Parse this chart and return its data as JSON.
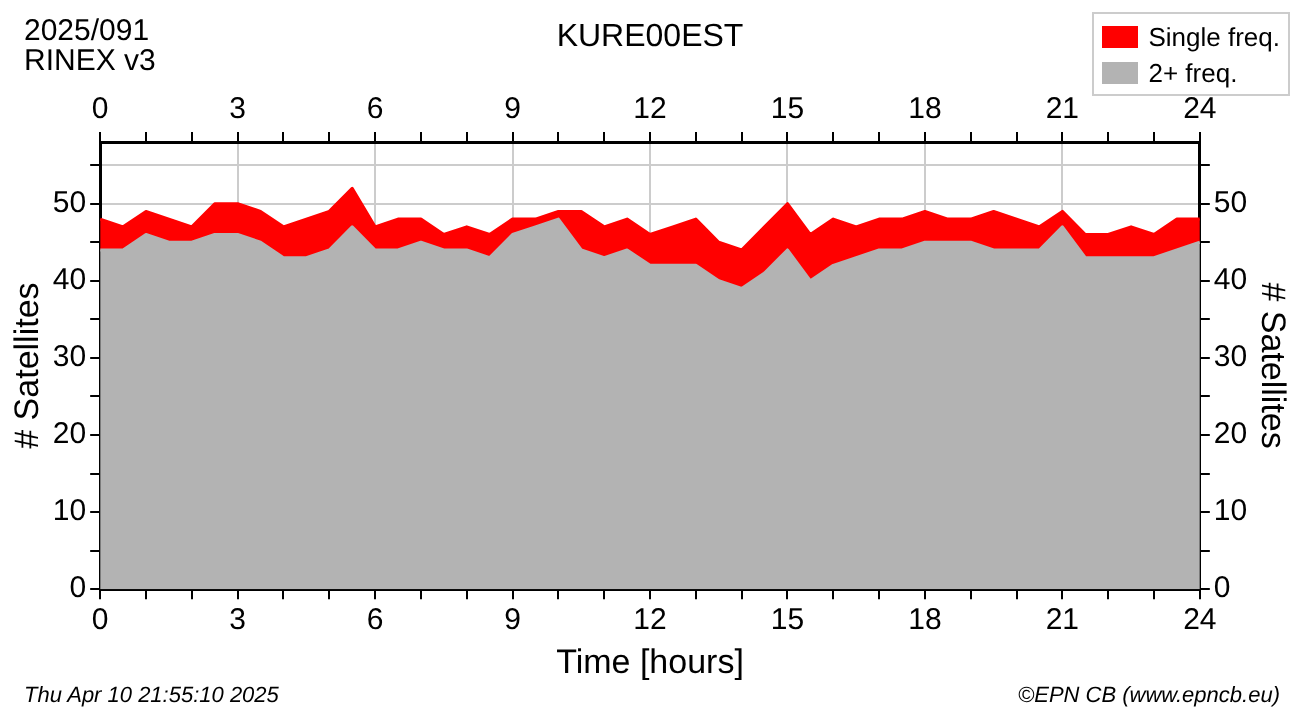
{
  "chart_data": {
    "type": "area",
    "title": "KURE00EST",
    "xlabel": "Time [hours]",
    "ylabel": "# Satellites",
    "y2label": "# Satellites",
    "annotations": [
      "2025/091",
      "RINEX v3",
      "Thu Apr 10 21:55:10 2025",
      "©EPN CB (www.epncb.eu)"
    ],
    "stacked": true,
    "legend": "top right",
    "grid": true,
    "x": [
      0,
      0.5,
      1,
      1.5,
      2,
      2.5,
      3,
      3.5,
      4,
      4.5,
      5,
      5.5,
      6,
      6.5,
      7,
      7.5,
      8,
      8.5,
      9,
      9.5,
      10,
      10.5,
      11,
      11.5,
      12,
      12.5,
      13,
      13.5,
      14,
      14.5,
      15,
      15.5,
      16,
      16.5,
      17,
      17.5,
      18,
      18.5,
      19,
      19.5,
      20,
      20.5,
      21,
      21.5,
      22,
      22.5,
      23,
      23.5,
      24
    ],
    "series": [
      {
        "name": "2+ freq.",
        "color": "#b3b3b3",
        "values": [
          44,
          44,
          46,
          45,
          45,
          46,
          46,
          45,
          43,
          43,
          44,
          47,
          44,
          44,
          45,
          44,
          44,
          43,
          46,
          47,
          48,
          44,
          43,
          44,
          42,
          42,
          42,
          40,
          39,
          41,
          44,
          40,
          42,
          43,
          44,
          44,
          45,
          45,
          45,
          44,
          44,
          44,
          47,
          43,
          43,
          43,
          43,
          44,
          45
        ]
      },
      {
        "name": "Single freq.",
        "color": "#ff0000",
        "values": [
          4,
          3,
          3,
          3,
          2,
          4,
          4,
          4,
          4,
          5,
          5,
          5,
          3,
          4,
          3,
          2,
          3,
          3,
          2,
          1,
          1,
          5,
          4,
          4,
          4,
          5,
          6,
          5,
          5,
          6,
          6,
          6,
          6,
          4,
          4,
          4,
          4,
          3,
          3,
          5,
          4,
          3,
          2,
          3,
          3,
          4,
          3,
          4,
          3
        ]
      }
    ],
    "xlim": [
      0,
      24
    ],
    "xticks": [
      0,
      {
        "value": 1,
        "label": null
      },
      {
        "value": 2,
        "label": null
      },
      3,
      {
        "value": 4,
        "label": null
      },
      {
        "value": 5,
        "label": null
      },
      6,
      {
        "value": 7,
        "label": null
      },
      {
        "value": 8,
        "label": null
      },
      9,
      {
        "value": 10,
        "label": null
      },
      {
        "value": 11,
        "label": null
      },
      12,
      {
        "value": 13,
        "label": null
      },
      {
        "value": 14,
        "label": null
      },
      15,
      {
        "value": 16,
        "label": null
      },
      {
        "value": 17,
        "label": null
      },
      18,
      {
        "value": 19,
        "label": null
      },
      {
        "value": 20,
        "label": null
      },
      21,
      {
        "value": 22,
        "label": null
      },
      {
        "value": 23,
        "label": null
      },
      24
    ],
    "x2lim": [
      0,
      24
    ],
    "x2ticks": [
      0,
      {
        "value": 1,
        "label": null
      },
      {
        "value": 2,
        "label": null
      },
      3,
      {
        "value": 4,
        "label": null
      },
      {
        "value": 5,
        "label": null
      },
      6,
      {
        "value": 7,
        "label": null
      },
      {
        "value": 8,
        "label": null
      },
      9,
      {
        "value": 10,
        "label": null
      },
      {
        "value": 11,
        "label": null
      },
      12,
      {
        "value": 13,
        "label": null
      },
      {
        "value": 14,
        "label": null
      },
      15,
      {
        "value": 16,
        "label": null
      },
      {
        "value": 17,
        "label": null
      },
      18,
      {
        "value": 19,
        "label": null
      },
      {
        "value": 20,
        "label": null
      },
      21,
      {
        "value": 22,
        "label": null
      },
      {
        "value": 23,
        "label": null
      },
      24
    ],
    "ylim": [
      0,
      58
    ],
    "yticks": [
      0,
      {
        "value": 5,
        "label": null
      },
      10,
      {
        "value": 15,
        "label": null
      },
      20,
      {
        "value": 25,
        "label": null
      },
      30,
      {
        "value": 35,
        "label": null
      },
      40,
      {
        "value": 45,
        "label": null
      },
      50,
      {
        "value": 55,
        "label": null
      }
    ],
    "y2lim": [
      0,
      58
    ],
    "y2ticks": [
      0,
      {
        "value": 5,
        "label": null
      },
      10,
      {
        "value": 15,
        "label": null
      },
      20,
      {
        "value": 25,
        "label": null
      },
      30,
      {
        "value": 35,
        "label": null
      },
      40,
      {
        "value": 45,
        "label": null
      },
      50,
      {
        "value": 55,
        "label": null
      }
    ]
  }
}
